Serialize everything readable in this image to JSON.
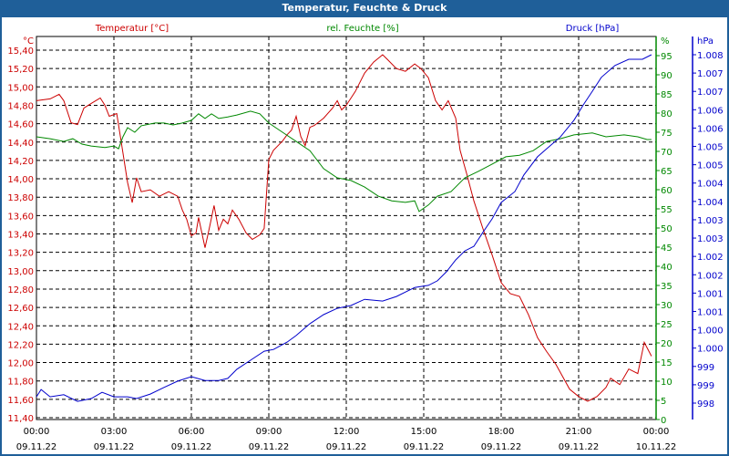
{
  "window": {
    "title": "Temperatur, Feuchte & Druck"
  },
  "colors": {
    "temperature": "#cc0000",
    "humidity": "#008800",
    "pressure": "#0000cc",
    "grid": "#000000",
    "titlebar": "#1f5f99"
  },
  "chart_data": {
    "type": "line",
    "title": "Temperatur, Feuchte & Druck",
    "xlabel": "",
    "x_unit": "hours since 09.11.22 00:00",
    "xlim": [
      0,
      24
    ],
    "x_ticks": [
      {
        "time": "00:00",
        "date": "09.11.22"
      },
      {
        "time": "03:00",
        "date": "09.11.22"
      },
      {
        "time": "06:00",
        "date": "09.11.22"
      },
      {
        "time": "09:00",
        "date": "09.11.22"
      },
      {
        "time": "12:00",
        "date": "09.11.22"
      },
      {
        "time": "15:00",
        "date": "09.11.22"
      },
      {
        "time": "18:00",
        "date": "09.11.22"
      },
      {
        "time": "21:00",
        "date": "09.11.22"
      },
      {
        "time": "00:00",
        "date": "10.11.22"
      }
    ],
    "axes": {
      "temperature": {
        "label": "Temperatur [°C]",
        "unit": "°C",
        "ylim": [
          11.4,
          15.4
        ],
        "ticks": [
          "15,40",
          "15,20",
          "15,00",
          "14,80",
          "14,60",
          "14,40",
          "14,20",
          "14,00",
          "13,80",
          "13,60",
          "13,40",
          "13,20",
          "13,00",
          "12,80",
          "12,60",
          "12,40",
          "12,20",
          "12,00",
          "11,80",
          "11,60",
          "11,40"
        ]
      },
      "humidity": {
        "label": "rel. Feuchte [%]",
        "unit": "%",
        "ylim": [
          0,
          95
        ],
        "ticks": [
          "95",
          "90",
          "85",
          "80",
          "75",
          "70",
          "65",
          "60",
          "55",
          "50",
          "45",
          "40",
          "35",
          "30",
          "25",
          "20",
          "15",
          "10",
          "5",
          "0"
        ]
      },
      "pressure": {
        "label": "Druck [hPa]",
        "unit": "hPa",
        "ylim": [
          998,
          1008
        ],
        "ticks": [
          "1.008",
          "1.007",
          "1.007",
          "1.006",
          "1.006",
          "1.005",
          "1.005",
          "1.004",
          "1.004",
          "1.003",
          "1.003",
          "1.002",
          "1.002",
          "1.001",
          "1.001",
          "1.000",
          "1.000",
          "999",
          "999",
          "998"
        ]
      }
    },
    "grid": true,
    "series": [
      {
        "name": "Temperatur [°C]",
        "axis": "temperature",
        "points": [
          [
            0,
            14.85
          ],
          [
            0.53,
            14.87
          ],
          [
            0.88,
            14.92
          ],
          [
            1.06,
            14.85
          ],
          [
            1.34,
            14.61
          ],
          [
            1.59,
            14.59
          ],
          [
            1.84,
            14.77
          ],
          [
            2.12,
            14.82
          ],
          [
            2.47,
            14.88
          ],
          [
            2.65,
            14.8
          ],
          [
            2.82,
            14.68
          ],
          [
            3.11,
            14.71
          ],
          [
            3.25,
            14.46
          ],
          [
            3.53,
            13.96
          ],
          [
            3.71,
            13.74
          ],
          [
            3.88,
            14.01
          ],
          [
            4.06,
            13.86
          ],
          [
            4.41,
            13.88
          ],
          [
            4.76,
            13.81
          ],
          [
            5.12,
            13.86
          ],
          [
            5.47,
            13.81
          ],
          [
            5.65,
            13.66
          ],
          [
            5.82,
            13.56
          ],
          [
            6,
            13.38
          ],
          [
            6.18,
            13.41
          ],
          [
            6.28,
            13.58
          ],
          [
            6.53,
            13.25
          ],
          [
            6.71,
            13.48
          ],
          [
            6.88,
            13.71
          ],
          [
            7.06,
            13.44
          ],
          [
            7.24,
            13.56
          ],
          [
            7.41,
            13.51
          ],
          [
            7.59,
            13.66
          ],
          [
            7.84,
            13.56
          ],
          [
            8.12,
            13.41
          ],
          [
            8.36,
            13.34
          ],
          [
            8.65,
            13.39
          ],
          [
            8.82,
            13.46
          ],
          [
            9,
            14.21
          ],
          [
            9.18,
            14.31
          ],
          [
            9.53,
            14.41
          ],
          [
            9.71,
            14.48
          ],
          [
            9.88,
            14.53
          ],
          [
            10.06,
            14.68
          ],
          [
            10.24,
            14.46
          ],
          [
            10.41,
            14.36
          ],
          [
            10.59,
            14.56
          ],
          [
            10.76,
            14.58
          ],
          [
            11.12,
            14.66
          ],
          [
            11.47,
            14.77
          ],
          [
            11.65,
            14.85
          ],
          [
            11.82,
            14.75
          ],
          [
            12,
            14.8
          ],
          [
            12.35,
            14.95
          ],
          [
            12.71,
            15.15
          ],
          [
            13.06,
            15.27
          ],
          [
            13.41,
            15.35
          ],
          [
            13.59,
            15.3
          ],
          [
            13.94,
            15.2
          ],
          [
            14.29,
            15.17
          ],
          [
            14.65,
            15.25
          ],
          [
            14.89,
            15.2
          ],
          [
            15.18,
            15.1
          ],
          [
            15.46,
            14.85
          ],
          [
            15.71,
            14.75
          ],
          [
            15.95,
            14.85
          ],
          [
            16.24,
            14.66
          ],
          [
            16.41,
            14.31
          ],
          [
            16.66,
            14.06
          ],
          [
            16.94,
            13.76
          ],
          [
            17.29,
            13.46
          ],
          [
            17.65,
            13.17
          ],
          [
            18,
            12.87
          ],
          [
            18.35,
            12.75
          ],
          [
            18.71,
            12.72
          ],
          [
            19.06,
            12.52
          ],
          [
            19.41,
            12.27
          ],
          [
            19.76,
            12.12
          ],
          [
            20.12,
            11.98
          ],
          [
            20.65,
            11.71
          ],
          [
            21,
            11.63
          ],
          [
            21.35,
            11.58
          ],
          [
            21.71,
            11.63
          ],
          [
            22.06,
            11.73
          ],
          [
            22.24,
            11.83
          ],
          [
            22.59,
            11.76
          ],
          [
            22.94,
            11.93
          ],
          [
            23.29,
            11.88
          ],
          [
            23.54,
            12.22
          ],
          [
            23.82,
            12.07
          ]
        ]
      },
      {
        "name": "rel. Feuchte [%]",
        "axis": "humidity",
        "points": [
          [
            0,
            73.8
          ],
          [
            0.53,
            73.3
          ],
          [
            1.06,
            72.6
          ],
          [
            1.41,
            73.3
          ],
          [
            1.76,
            71.9
          ],
          [
            2.12,
            71.4
          ],
          [
            2.65,
            71
          ],
          [
            3,
            71.4
          ],
          [
            3.18,
            70.7
          ],
          [
            3.35,
            73.8
          ],
          [
            3.53,
            76.2
          ],
          [
            3.81,
            75
          ],
          [
            4.06,
            76.7
          ],
          [
            4.59,
            77.4
          ],
          [
            4.94,
            77.4
          ],
          [
            5.29,
            76.9
          ],
          [
            5.65,
            77.4
          ],
          [
            6,
            78.1
          ],
          [
            6.28,
            79.8
          ],
          [
            6.53,
            78.6
          ],
          [
            6.78,
            79.8
          ],
          [
            7.06,
            78.6
          ],
          [
            7.41,
            79
          ],
          [
            7.76,
            79.5
          ],
          [
            8.29,
            80.5
          ],
          [
            8.65,
            79.8
          ],
          [
            9,
            77.4
          ],
          [
            9.53,
            75
          ],
          [
            10.06,
            72.6
          ],
          [
            10.59,
            70.2
          ],
          [
            11.12,
            65.5
          ],
          [
            11.65,
            63.1
          ],
          [
            12.18,
            62.4
          ],
          [
            12.71,
            60.7
          ],
          [
            13.24,
            58.3
          ],
          [
            13.76,
            57.1
          ],
          [
            14.29,
            56.7
          ],
          [
            14.65,
            57.1
          ],
          [
            14.82,
            54.3
          ],
          [
            15.18,
            56
          ],
          [
            15.53,
            58.3
          ],
          [
            16.06,
            59.5
          ],
          [
            16.59,
            63.1
          ],
          [
            17.12,
            64.8
          ],
          [
            17.65,
            66.7
          ],
          [
            18.18,
            68.6
          ],
          [
            18.71,
            69
          ],
          [
            19.24,
            70.2
          ],
          [
            19.76,
            72.6
          ],
          [
            20.29,
            73.3
          ],
          [
            20.82,
            74.3
          ],
          [
            21.53,
            74.8
          ],
          [
            22.06,
            73.8
          ],
          [
            22.76,
            74.3
          ],
          [
            23.29,
            73.8
          ],
          [
            23.65,
            73.1
          ],
          [
            23.82,
            73.1
          ]
        ]
      },
      {
        "name": "Druck [hPa]",
        "axis": "pressure",
        "points": [
          [
            0,
            998.18
          ],
          [
            0.18,
            998.39
          ],
          [
            0.53,
            998.18
          ],
          [
            1.06,
            998.24
          ],
          [
            1.59,
            998.05
          ],
          [
            2.12,
            998.13
          ],
          [
            2.54,
            998.31
          ],
          [
            3,
            998.18
          ],
          [
            3.53,
            998.18
          ],
          [
            3.88,
            998.13
          ],
          [
            4.41,
            998.26
          ],
          [
            4.94,
            998.45
          ],
          [
            5.47,
            998.63
          ],
          [
            6,
            998.76
          ],
          [
            6.53,
            998.65
          ],
          [
            7.06,
            998.65
          ],
          [
            7.41,
            998.71
          ],
          [
            7.76,
            998.97
          ],
          [
            8.29,
            999.23
          ],
          [
            8.82,
            999.49
          ],
          [
            9.18,
            999.54
          ],
          [
            9.71,
            999.75
          ],
          [
            10.06,
            999.94
          ],
          [
            10.59,
            1000.28
          ],
          [
            11.12,
            1000.54
          ],
          [
            11.65,
            1000.72
          ],
          [
            12.18,
            1000.8
          ],
          [
            12.71,
            1000.98
          ],
          [
            13.41,
            1000.93
          ],
          [
            13.94,
            1001.06
          ],
          [
            14.65,
            1001.32
          ],
          [
            15.18,
            1001.38
          ],
          [
            15.53,
            1001.51
          ],
          [
            15.88,
            1001.77
          ],
          [
            16.24,
            1002.11
          ],
          [
            16.59,
            1002.37
          ],
          [
            16.94,
            1002.5
          ],
          [
            17.29,
            1002.9
          ],
          [
            17.65,
            1003.29
          ],
          [
            18,
            1003.76
          ],
          [
            18.53,
            1004.07
          ],
          [
            18.88,
            1004.55
          ],
          [
            19.41,
            1005.07
          ],
          [
            19.76,
            1005.3
          ],
          [
            20.29,
            1005.64
          ],
          [
            20.82,
            1006.12
          ],
          [
            21.18,
            1006.56
          ],
          [
            21.53,
            1006.95
          ],
          [
            21.88,
            1007.35
          ],
          [
            22.41,
            1007.69
          ],
          [
            22.94,
            1007.87
          ],
          [
            23.47,
            1007.87
          ],
          [
            23.82,
            1008.0
          ]
        ]
      }
    ]
  }
}
